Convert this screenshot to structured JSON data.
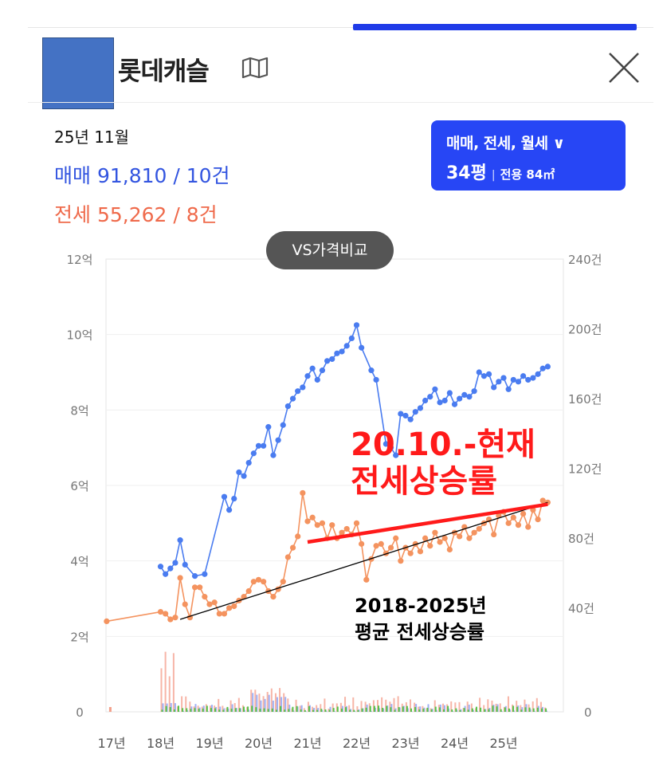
{
  "header": {
    "title": "롯데캐슬",
    "date": "25년 11월",
    "sale_summary": "매매 91,810 / 10건",
    "jeonse_summary": "전세 55,262 / 8건",
    "filter_types": "매매, 전세, 월세 ∨",
    "filter_size": "34평",
    "filter_area": "전용 84㎡",
    "compare_button": "VS가격비교"
  },
  "annotations": {
    "recent_line1": "20.10.-현재",
    "recent_line2": "전세상승률",
    "avg_line1": "2018-2025년",
    "avg_line2": "평균 전세상승률"
  },
  "colors": {
    "sale": "#4a7cf0",
    "jeonse": "#f4935f",
    "accent": "#2746f5",
    "trend_red": "#ff1a1a"
  },
  "chart_data": {
    "type": "line",
    "x_ticks": [
      "17년",
      "18년",
      "19년",
      "20년",
      "21년",
      "22년",
      "23년",
      "24년",
      "25년"
    ],
    "y_left_ticks": [
      "0",
      "2억",
      "4억",
      "6억",
      "8억",
      "10억",
      "12억"
    ],
    "y_right_ticks": [
      "0",
      "40건",
      "80건",
      "120건",
      "160건",
      "200건",
      "240건"
    ],
    "ylim_left": [
      0,
      12
    ],
    "ylim_right": [
      0,
      240
    ],
    "series": [
      {
        "name": "매매",
        "x": [
          18.0,
          18.1,
          18.2,
          18.3,
          18.4,
          18.5,
          18.7,
          18.9,
          19.3,
          19.4,
          19.5,
          19.6,
          19.7,
          19.8,
          19.9,
          20.0,
          20.1,
          20.2,
          20.3,
          20.4,
          20.5,
          20.6,
          20.7,
          20.8,
          20.9,
          21.0,
          21.1,
          21.2,
          21.3,
          21.4,
          21.5,
          21.6,
          21.7,
          21.8,
          21.9,
          22.0,
          22.1,
          22.3,
          22.4,
          22.6,
          22.7,
          22.8,
          22.9,
          23.0,
          23.1,
          23.2,
          23.3,
          23.4,
          23.5,
          23.6,
          23.7,
          23.8,
          23.9,
          24.0,
          24.1,
          24.2,
          24.3,
          24.4,
          24.5,
          24.6,
          24.7,
          24.8,
          24.9,
          25.0,
          25.1,
          25.2,
          25.3,
          25.4,
          25.5,
          25.6,
          25.7,
          25.8,
          25.9
        ],
        "values": [
          3.85,
          3.65,
          3.8,
          3.95,
          4.55,
          3.9,
          3.6,
          3.65,
          5.7,
          5.35,
          5.65,
          6.35,
          6.25,
          6.6,
          6.85,
          7.05,
          7.05,
          7.55,
          6.8,
          7.2,
          7.6,
          8.1,
          8.3,
          8.5,
          8.6,
          8.9,
          9.1,
          8.8,
          9.05,
          9.3,
          9.35,
          9.5,
          9.55,
          9.7,
          9.9,
          10.25,
          9.65,
          9.05,
          8.8,
          7.1,
          7.0,
          6.8,
          7.9,
          7.85,
          7.75,
          7.95,
          8.05,
          8.25,
          8.35,
          8.55,
          8.2,
          8.25,
          8.45,
          8.15,
          8.3,
          8.4,
          8.35,
          8.5,
          9.0,
          8.9,
          8.95,
          8.6,
          8.75,
          8.85,
          8.55,
          8.8,
          8.75,
          8.9,
          8.8,
          8.85,
          8.95,
          9.1,
          9.15
        ]
      },
      {
        "name": "전세",
        "x": [
          16.9,
          18.0,
          18.1,
          18.2,
          18.3,
          18.4,
          18.5,
          18.6,
          18.7,
          18.8,
          18.9,
          19.0,
          19.1,
          19.2,
          19.3,
          19.4,
          19.5,
          19.6,
          19.7,
          19.8,
          19.9,
          20.0,
          20.1,
          20.2,
          20.3,
          20.4,
          20.5,
          20.6,
          20.7,
          20.8,
          20.9,
          21.0,
          21.1,
          21.2,
          21.3,
          21.4,
          21.5,
          21.6,
          21.7,
          21.8,
          21.9,
          22.0,
          22.1,
          22.2,
          22.3,
          22.4,
          22.5,
          22.6,
          22.7,
          22.8,
          22.9,
          23.0,
          23.1,
          23.2,
          23.3,
          23.4,
          23.5,
          23.6,
          23.7,
          23.8,
          23.9,
          24.0,
          24.1,
          24.2,
          24.3,
          24.4,
          24.5,
          24.6,
          24.7,
          24.8,
          24.9,
          25.0,
          25.1,
          25.2,
          25.3,
          25.4,
          25.5,
          25.6,
          25.7,
          25.8,
          25.9
        ],
        "values": [
          2.4,
          2.65,
          2.6,
          2.45,
          2.5,
          3.55,
          2.85,
          2.5,
          3.3,
          3.3,
          3.05,
          2.85,
          2.9,
          2.6,
          2.6,
          2.75,
          2.8,
          2.95,
          3.05,
          3.2,
          3.45,
          3.5,
          3.45,
          3.2,
          3.05,
          3.25,
          3.45,
          4.1,
          4.35,
          4.65,
          5.8,
          5.05,
          5.15,
          4.95,
          5.0,
          4.6,
          4.95,
          4.6,
          4.75,
          4.85,
          4.7,
          5.0,
          4.45,
          3.5,
          4.05,
          4.4,
          4.45,
          4.2,
          4.35,
          4.6,
          4.0,
          4.35,
          4.2,
          4.45,
          4.25,
          4.6,
          4.4,
          4.75,
          4.5,
          4.6,
          4.3,
          4.75,
          4.65,
          4.9,
          4.6,
          4.75,
          4.85,
          5.0,
          5.1,
          4.7,
          5.2,
          5.3,
          5.0,
          5.15,
          4.95,
          5.25,
          4.9,
          5.35,
          5.1,
          5.6,
          5.55
        ]
      }
    ],
    "trendlines": [
      {
        "label": "2018-2025년 평균 전세상승률",
        "from": [
          18.4,
          2.45
        ],
        "to": [
          25.9,
          5.55
        ]
      },
      {
        "label": "20.10.-현재 전세상승률",
        "from": [
          21.0,
          4.5
        ],
        "to": [
          25.9,
          5.5
        ]
      }
    ]
  }
}
